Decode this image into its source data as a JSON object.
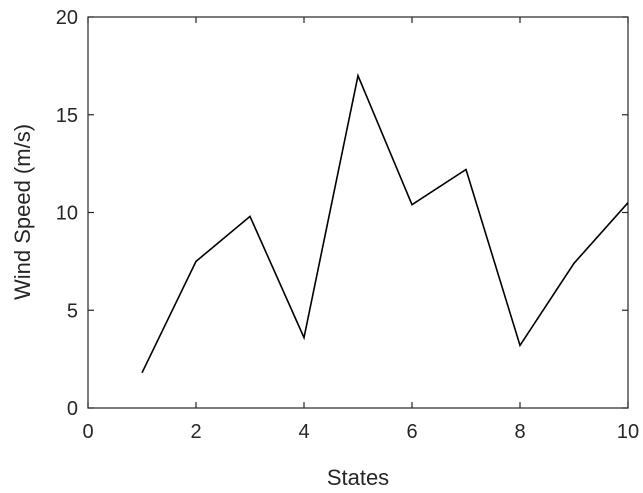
{
  "chart_data": {
    "type": "line",
    "title": "",
    "xlabel": "States",
    "ylabel": "Wind Speed (m/s)",
    "xlim": [
      0,
      10
    ],
    "ylim": [
      0,
      20
    ],
    "xticks": [
      0,
      2,
      4,
      6,
      8,
      10
    ],
    "yticks": [
      0,
      5,
      10,
      15,
      20
    ],
    "grid": false,
    "series": [
      {
        "color": "#000000",
        "x": [
          1,
          2,
          3,
          4,
          5,
          6,
          7,
          8,
          9,
          10
        ],
        "y": [
          1.8,
          7.5,
          9.8,
          3.6,
          17.0,
          10.4,
          12.2,
          3.2,
          7.4,
          10.5
        ]
      }
    ]
  }
}
